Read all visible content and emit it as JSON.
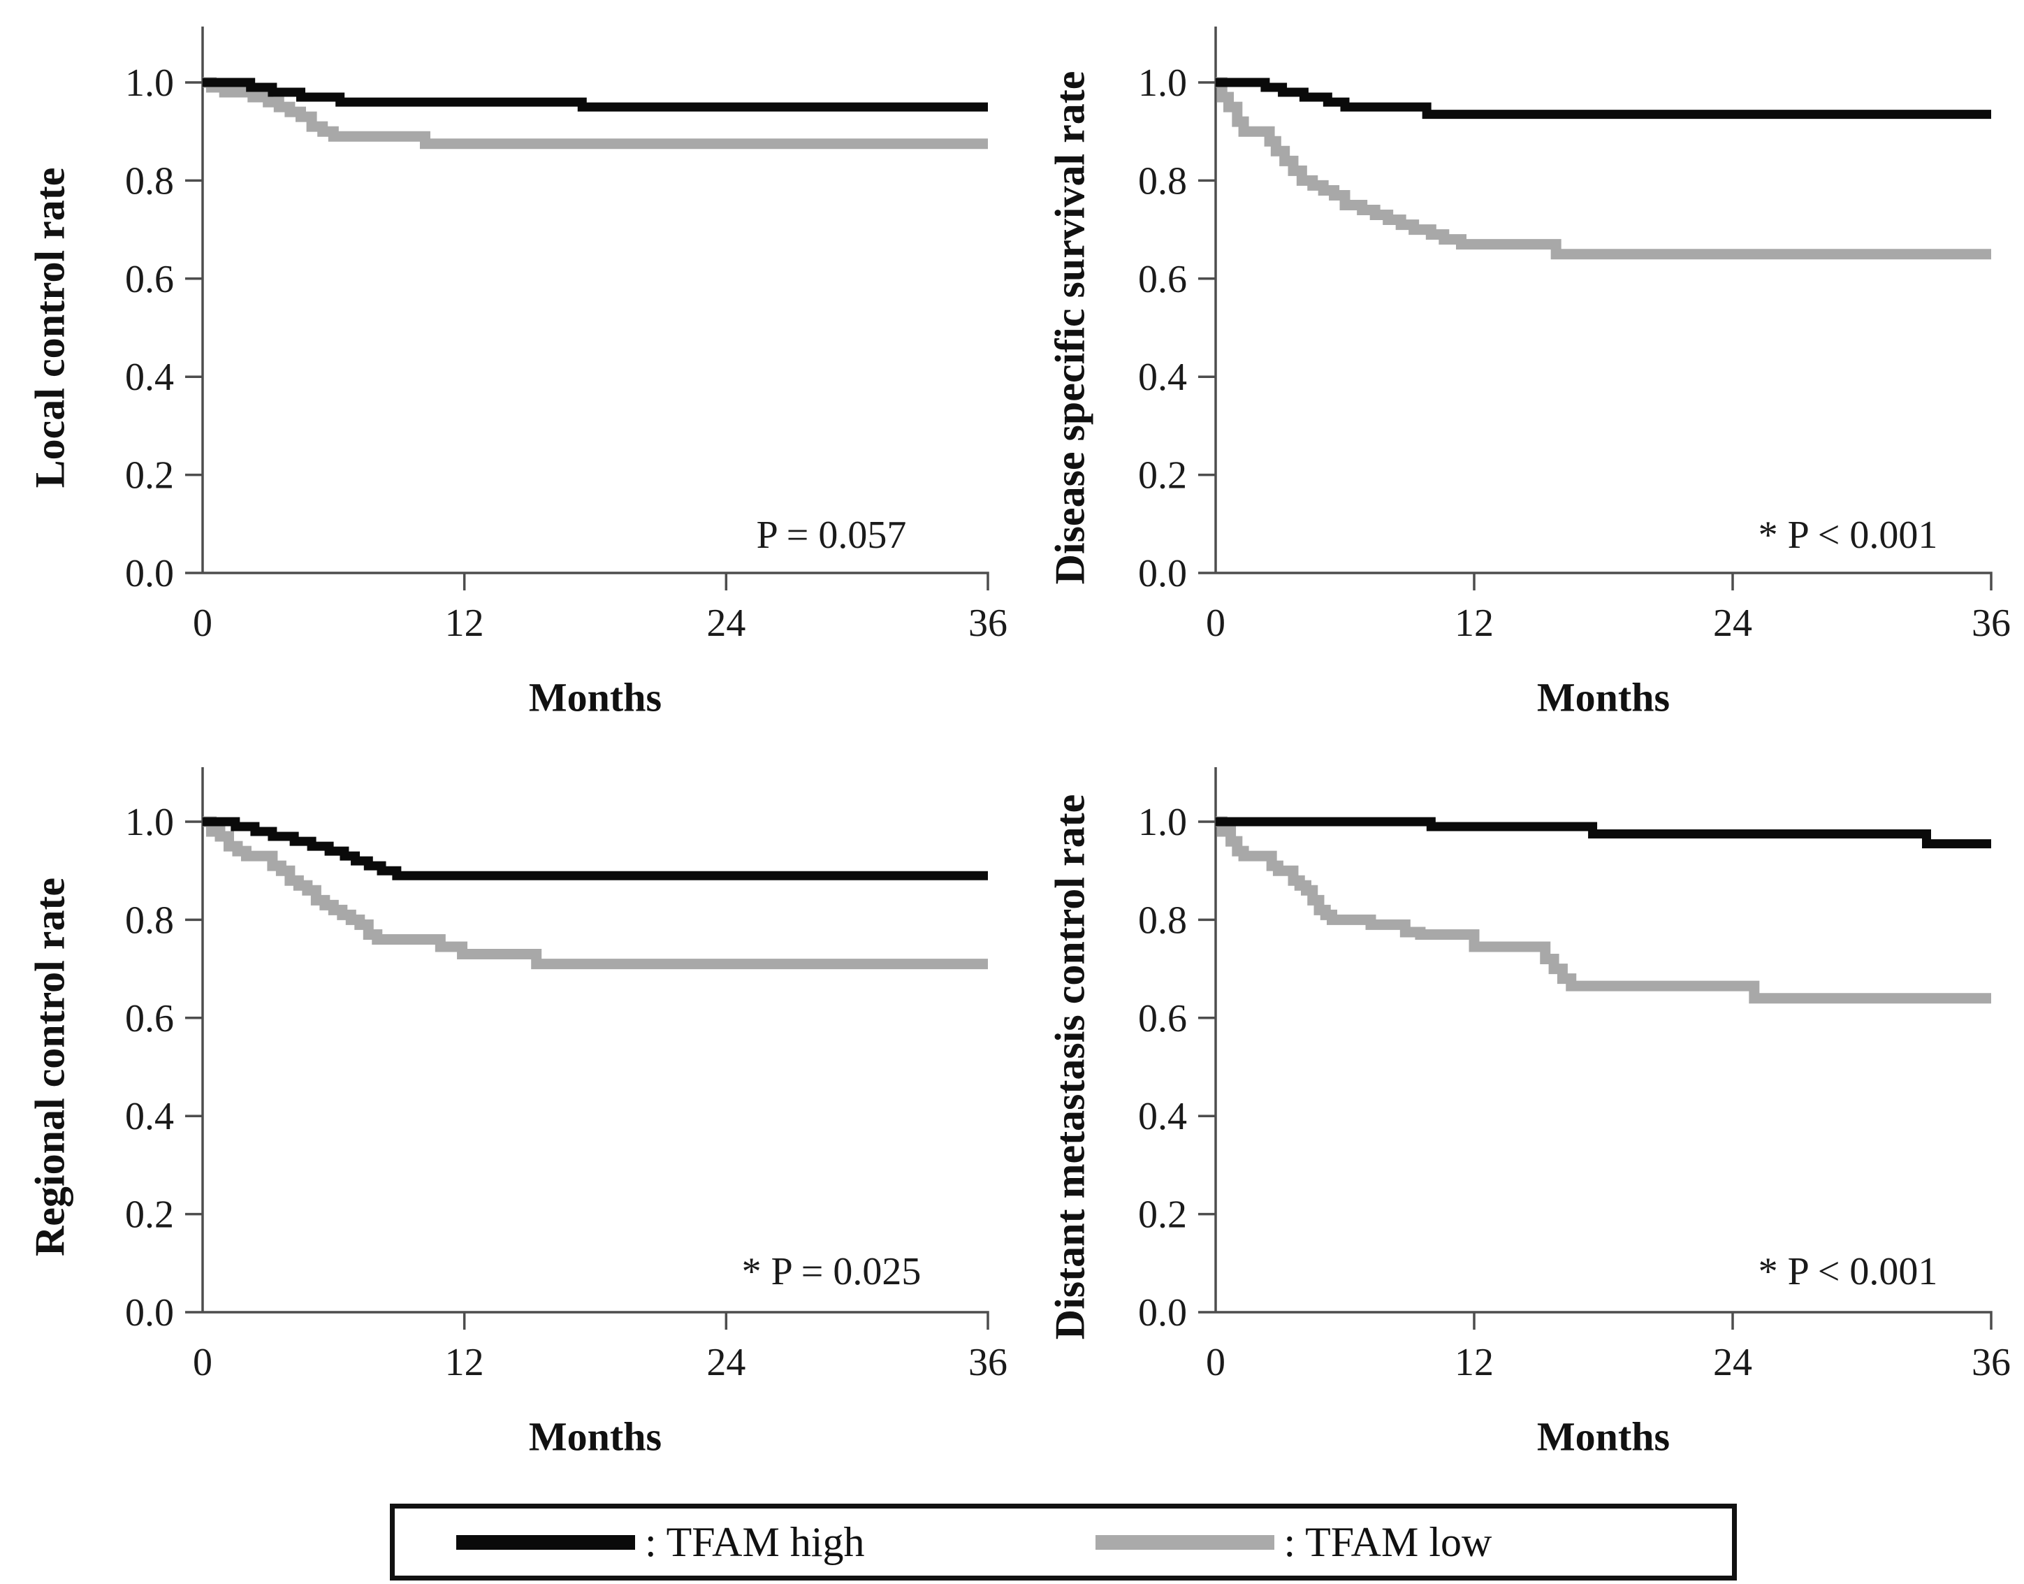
{
  "legend": {
    "items": [
      {
        "label": ": TFAM high",
        "color": "#0a0a0a",
        "swatch": "thick-black-line"
      },
      {
        "label": ": TFAM low",
        "color": "#aaaaaa",
        "swatch": "thick-gray-line"
      }
    ]
  },
  "chart_data": [
    {
      "type": "line",
      "subtype": "kaplan-meier-step",
      "ylabel": "Local control rate",
      "xlabel": "Months",
      "p_label": "P = 0.057",
      "xlim": [
        0,
        36
      ],
      "ylim": [
        0.0,
        1.08
      ],
      "x_ticks": [
        "0",
        "12",
        "24",
        "36"
      ],
      "y_ticks": [
        "1.0",
        "0.8",
        "0.6",
        "0.4",
        "0.2",
        "0.0"
      ],
      "grid": false,
      "series": [
        {
          "name": "TFAM high",
          "color": "#0a0a0a",
          "width": 13,
          "points": [
            [
              0,
              1.0
            ],
            [
              2.2,
              0.99
            ],
            [
              3.2,
              0.98
            ],
            [
              4.5,
              0.97
            ],
            [
              6.3,
              0.96
            ],
            [
              17.4,
              0.95
            ]
          ]
        },
        {
          "name": "TFAM low",
          "color": "#a8a8a8",
          "width": 15,
          "points": [
            [
              0,
              1.0
            ],
            [
              0.4,
              0.99
            ],
            [
              1,
              0.98
            ],
            [
              2.3,
              0.97
            ],
            [
              3,
              0.96
            ],
            [
              3.5,
              0.95
            ],
            [
              4,
              0.94
            ],
            [
              4.5,
              0.93
            ],
            [
              5,
              0.91
            ],
            [
              5.5,
              0.9
            ],
            [
              6,
              0.89
            ],
            [
              10.2,
              0.875
            ]
          ]
        }
      ]
    },
    {
      "type": "line",
      "subtype": "kaplan-meier-step",
      "ylabel": "Disease specific survival rate",
      "xlabel": "Months",
      "p_label": "* P < 0.001",
      "xlim": [
        0,
        36
      ],
      "ylim": [
        0.0,
        1.08
      ],
      "x_ticks": [
        "0",
        "12",
        "24",
        "36"
      ],
      "y_ticks": [
        "1.0",
        "0.8",
        "0.6",
        "0.4",
        "0.2",
        "0.0"
      ],
      "grid": false,
      "series": [
        {
          "name": "TFAM high",
          "color": "#0a0a0a",
          "width": 13,
          "points": [
            [
              0,
              1.0
            ],
            [
              2.3,
              0.99
            ],
            [
              3.1,
              0.98
            ],
            [
              4.1,
              0.97
            ],
            [
              5.2,
              0.96
            ],
            [
              6,
              0.95
            ],
            [
              9.8,
              0.935
            ]
          ]
        },
        {
          "name": "TFAM low",
          "color": "#a8a8a8",
          "width": 15,
          "points": [
            [
              0,
              1.0
            ],
            [
              0.3,
              0.97
            ],
            [
              0.6,
              0.95
            ],
            [
              1,
              0.92
            ],
            [
              1.3,
              0.9
            ],
            [
              2.5,
              0.88
            ],
            [
              2.8,
              0.86
            ],
            [
              3.2,
              0.84
            ],
            [
              3.6,
              0.82
            ],
            [
              4,
              0.8
            ],
            [
              4.5,
              0.79
            ],
            [
              5,
              0.78
            ],
            [
              5.5,
              0.77
            ],
            [
              6,
              0.75
            ],
            [
              6.8,
              0.74
            ],
            [
              7.4,
              0.73
            ],
            [
              8,
              0.72
            ],
            [
              8.6,
              0.71
            ],
            [
              9.2,
              0.7
            ],
            [
              10,
              0.69
            ],
            [
              10.6,
              0.68
            ],
            [
              11.4,
              0.67
            ],
            [
              15.8,
              0.65
            ]
          ]
        }
      ]
    },
    {
      "type": "line",
      "subtype": "kaplan-meier-step",
      "ylabel": "Regional control rate",
      "xlabel": "Months",
      "p_label": "* P = 0.025",
      "xlim": [
        0,
        36
      ],
      "ylim": [
        0.0,
        1.08
      ],
      "x_ticks": [
        "0",
        "12",
        "24",
        "36"
      ],
      "y_ticks": [
        "1.0",
        "0.8",
        "0.6",
        "0.4",
        "0.2",
        "0.0"
      ],
      "grid": false,
      "series": [
        {
          "name": "TFAM high",
          "color": "#0a0a0a",
          "width": 13,
          "points": [
            [
              0,
              1.0
            ],
            [
              1.5,
              0.99
            ],
            [
              2.4,
              0.98
            ],
            [
              3.2,
              0.97
            ],
            [
              4.2,
              0.96
            ],
            [
              5,
              0.95
            ],
            [
              5.8,
              0.94
            ],
            [
              6.5,
              0.93
            ],
            [
              7,
              0.92
            ],
            [
              7.6,
              0.91
            ],
            [
              8.2,
              0.9
            ],
            [
              8.9,
              0.89
            ]
          ]
        },
        {
          "name": "TFAM low",
          "color": "#a8a8a8",
          "width": 15,
          "points": [
            [
              0,
              1.0
            ],
            [
              0.4,
              0.98
            ],
            [
              0.8,
              0.97
            ],
            [
              1.2,
              0.95
            ],
            [
              1.6,
              0.94
            ],
            [
              2,
              0.93
            ],
            [
              3.2,
              0.91
            ],
            [
              3.6,
              0.9
            ],
            [
              4,
              0.88
            ],
            [
              4.4,
              0.87
            ],
            [
              4.8,
              0.86
            ],
            [
              5.2,
              0.84
            ],
            [
              5.6,
              0.83
            ],
            [
              6,
              0.82
            ],
            [
              6.4,
              0.81
            ],
            [
              6.8,
              0.8
            ],
            [
              7.2,
              0.79
            ],
            [
              7.6,
              0.77
            ],
            [
              8,
              0.76
            ],
            [
              10.9,
              0.745
            ],
            [
              11.9,
              0.73
            ],
            [
              15.3,
              0.71
            ]
          ]
        }
      ]
    },
    {
      "type": "line",
      "subtype": "kaplan-meier-step",
      "ylabel": "Distant metastasis control rate",
      "xlabel": "Months",
      "p_label": "* P < 0.001",
      "xlim": [
        0,
        36
      ],
      "ylim": [
        0.0,
        1.08
      ],
      "x_ticks": [
        "0",
        "12",
        "24",
        "36"
      ],
      "y_ticks": [
        "1.0",
        "0.8",
        "0.6",
        "0.4",
        "0.2",
        "0.0"
      ],
      "grid": false,
      "series": [
        {
          "name": "TFAM high",
          "color": "#0a0a0a",
          "width": 13,
          "points": [
            [
              0,
              1.0
            ],
            [
              10,
              0.99
            ],
            [
              17.5,
              0.975
            ],
            [
              33,
              0.955
            ]
          ]
        },
        {
          "name": "TFAM low",
          "color": "#a8a8a8",
          "width": 15,
          "points": [
            [
              0,
              1.0
            ],
            [
              0.3,
              0.98
            ],
            [
              0.7,
              0.96
            ],
            [
              1,
              0.94
            ],
            [
              1.3,
              0.93
            ],
            [
              2.6,
              0.91
            ],
            [
              2.9,
              0.9
            ],
            [
              3.6,
              0.88
            ],
            [
              3.9,
              0.87
            ],
            [
              4.2,
              0.86
            ],
            [
              4.5,
              0.84
            ],
            [
              4.8,
              0.82
            ],
            [
              5.1,
              0.81
            ],
            [
              5.4,
              0.8
            ],
            [
              7.2,
              0.79
            ],
            [
              8.8,
              0.775
            ],
            [
              9.5,
              0.77
            ],
            [
              12,
              0.745
            ],
            [
              15.3,
              0.72
            ],
            [
              15.7,
              0.7
            ],
            [
              16.1,
              0.68
            ],
            [
              16.5,
              0.665
            ],
            [
              25,
              0.64
            ]
          ]
        }
      ]
    }
  ]
}
